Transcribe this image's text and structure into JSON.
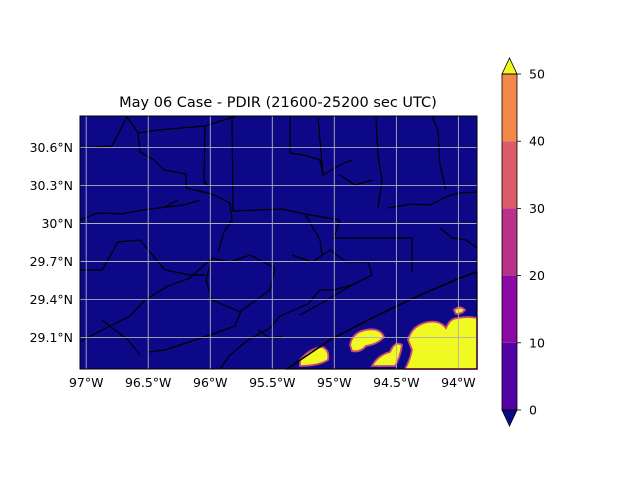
{
  "figure": {
    "title": "May 06 Case - PDIR (21600-25200 sec UTC)"
  },
  "map": {
    "lon_ticks": [
      "97°W",
      "96.5°W",
      "96°W",
      "95.5°W",
      "95°W",
      "94.5°W",
      "94°W"
    ],
    "lat_ticks": [
      "30.6°N",
      "30.3°N",
      "30°N",
      "29.7°N",
      "29.4°N",
      "29.1°N"
    ],
    "lon_range": [
      -97.05,
      -93.85
    ],
    "lat_range": [
      28.85,
      30.85
    ],
    "gridlines": true,
    "background_color": "#0d0887",
    "county_line_color": "#000000",
    "gridline_color": "#b0b0b0",
    "precip_color": "#f0f921",
    "precip_edge_color": "#cc4778"
  },
  "colorbar": {
    "tick_labels": [
      "0",
      "10",
      "20",
      "30",
      "40",
      "50"
    ],
    "levels": [
      0,
      10,
      20,
      30,
      40,
      50
    ],
    "extend": "both",
    "colors": [
      "#5302a3",
      "#8b0aa5",
      "#b83289",
      "#db5c68",
      "#f48849",
      "#febd2a"
    ],
    "under_color": "#0d0887",
    "over_color": "#f0f921"
  }
}
